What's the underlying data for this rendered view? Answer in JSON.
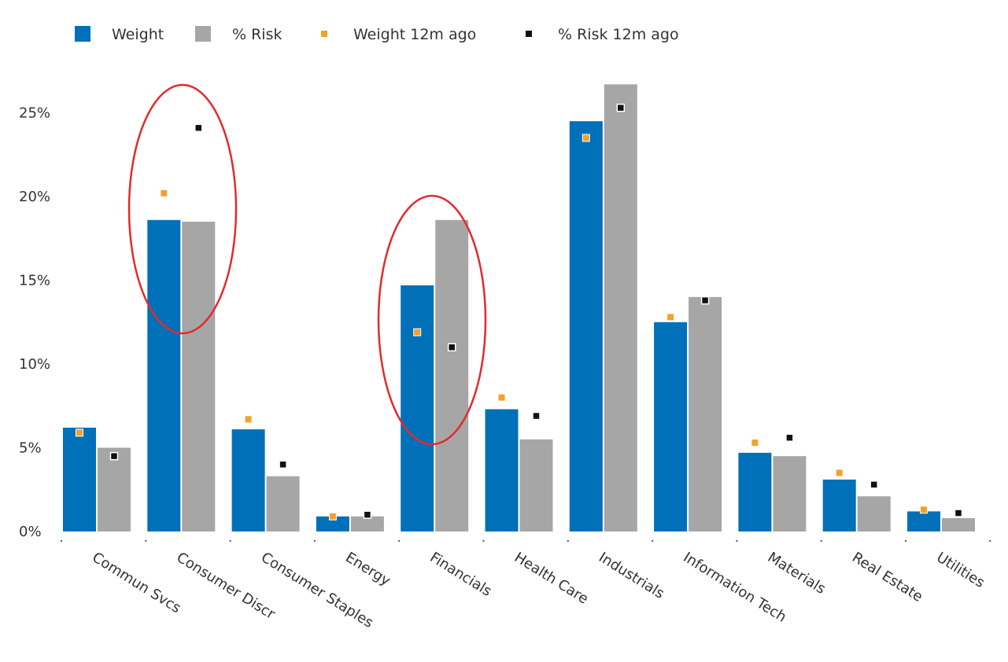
{
  "chart_data": {
    "type": "bar",
    "categories": [
      "Commun Svcs",
      "Consumer Discr",
      "Consumer Staples",
      "Energy",
      "Financials",
      "Health Care",
      "Industrials",
      "Information Tech",
      "Materials",
      "Real Estate",
      "Utilities"
    ],
    "series": [
      {
        "name": "Weight",
        "kind": "bar",
        "color": "#0070b8",
        "values": [
          6.2,
          18.6,
          6.1,
          0.9,
          14.7,
          7.3,
          24.5,
          12.5,
          4.7,
          3.1,
          1.2
        ]
      },
      {
        "name": "% Risk",
        "kind": "bar",
        "color": "#a6a6a6",
        "values": [
          5.0,
          18.5,
          3.3,
          0.9,
          18.6,
          5.5,
          26.7,
          14.0,
          4.5,
          2.1,
          0.8
        ]
      },
      {
        "name": "Weight 12m ago",
        "kind": "marker",
        "color": "#f4a02c",
        "values": [
          5.9,
          20.2,
          6.7,
          0.9,
          11.9,
          8.0,
          23.5,
          12.8,
          5.3,
          3.5,
          1.3
        ]
      },
      {
        "name": "% Risk 12m ago",
        "kind": "marker",
        "color": "#111111",
        "values": [
          4.5,
          24.1,
          4.0,
          1.0,
          11.0,
          6.9,
          25.3,
          13.8,
          5.6,
          2.8,
          1.1
        ]
      }
    ],
    "y_ticks": [
      "0%",
      "5%",
      "10%",
      "15%",
      "20%",
      "25%"
    ],
    "ylim": [
      0,
      27
    ],
    "legend_position": "top-left",
    "grid": false,
    "annotations": [
      {
        "shape": "ellipse",
        "color": "#e32b2b",
        "around": "Consumer Discr"
      },
      {
        "shape": "ellipse",
        "color": "#e32b2b",
        "around": "Financials"
      }
    ]
  }
}
